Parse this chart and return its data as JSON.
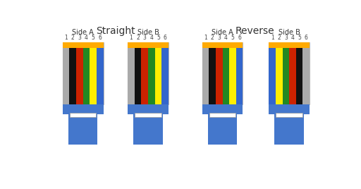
{
  "title_straight": "Straight",
  "title_reverse": "Reverse",
  "side_a_label": "Side A",
  "side_b_label": "Side B",
  "pin_labels": [
    "1",
    "2",
    "3",
    "4",
    "5",
    "6"
  ],
  "straight_A_colors": [
    "#aaaaaa",
    "#111111",
    "#cc2200",
    "#228822",
    "#ffee00",
    "#3366cc"
  ],
  "straight_B_colors": [
    "#aaaaaa",
    "#111111",
    "#cc2200",
    "#228822",
    "#ffee00",
    "#3366cc"
  ],
  "reverse_A_colors": [
    "#aaaaaa",
    "#111111",
    "#cc2200",
    "#228822",
    "#ffee00",
    "#3366cc"
  ],
  "reverse_B_colors": [
    "#3366cc",
    "#ffee00",
    "#228822",
    "#cc2200",
    "#111111",
    "#aaaaaa"
  ],
  "tip_color": "#ffaa00",
  "connector_body_color": "#4477cc",
  "bg_color": "#ffffff"
}
